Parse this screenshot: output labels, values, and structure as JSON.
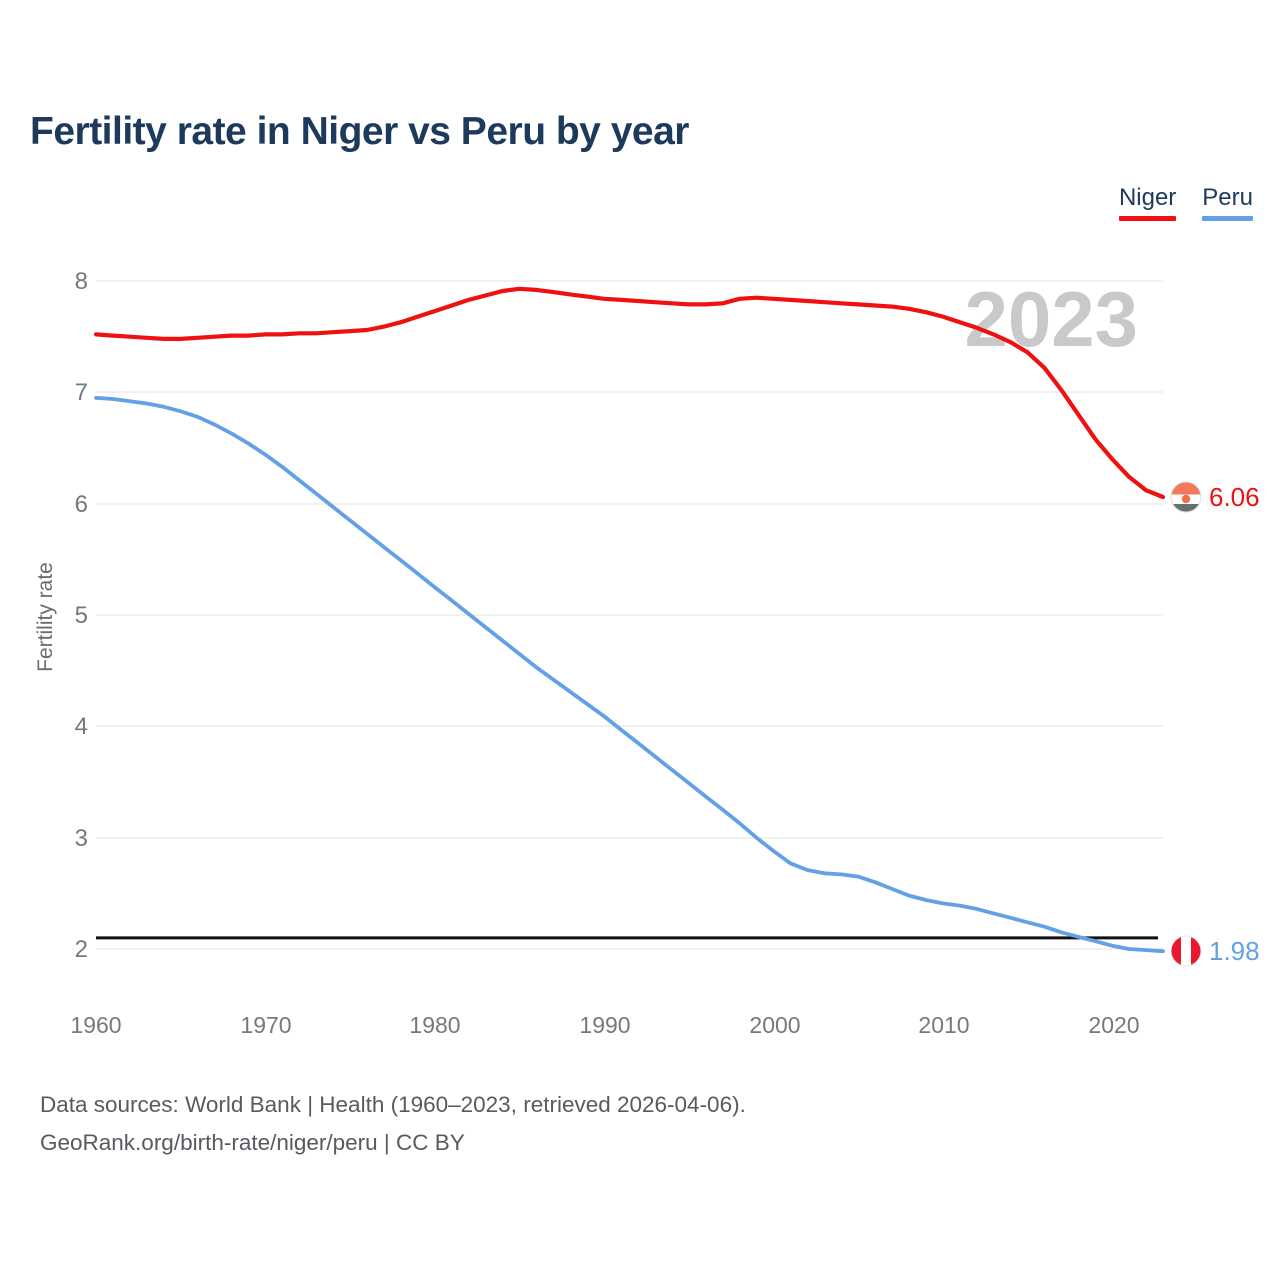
{
  "page": {
    "title": "Fertility rate in Niger vs Peru by year",
    "watermark": "2023",
    "footer_line1": "Data sources: World Bank | Health (1960–2023, retrieved 2026-04-06).",
    "footer_line2": "GeoRank.org/birth-rate/niger/peru | CC BY"
  },
  "legend": {
    "niger_label": "Niger",
    "peru_label": "Peru"
  },
  "end_labels": {
    "niger_value": "6.06",
    "peru_value": "1.98"
  },
  "colors": {
    "niger_line": "#ee1111",
    "peru_line": "#64a0e6",
    "title_text": "#1d3a5c",
    "watermark_text": "#c9c9c9",
    "reference_line": "#111111",
    "gridline": "#ececec",
    "niger_flag_orange": "#f2795b",
    "niger_flag_bottom": "#68706f",
    "peru_flag_red": "#e8192c"
  },
  "axes": {
    "y_title": "Fertility rate",
    "y_ticks": [
      "8",
      "7",
      "6",
      "5",
      "4",
      "3",
      "2"
    ],
    "x_ticks": [
      "1960",
      "1970",
      "1980",
      "1990",
      "2000",
      "2010",
      "2020"
    ]
  },
  "chart_data": {
    "type": "line",
    "title": "Fertility rate in Niger vs Peru by year",
    "xlabel": "",
    "ylabel": "Fertility rate",
    "x_range": [
      1960,
      2023
    ],
    "ylim": [
      2,
      8
    ],
    "grid": "horizontal",
    "legend_position": "top-right",
    "reference_line_y": 2.1,
    "x": [
      1960,
      1961,
      1962,
      1963,
      1964,
      1965,
      1966,
      1967,
      1968,
      1969,
      1970,
      1971,
      1972,
      1973,
      1974,
      1975,
      1976,
      1977,
      1978,
      1979,
      1980,
      1981,
      1982,
      1983,
      1984,
      1985,
      1986,
      1987,
      1988,
      1989,
      1990,
      1991,
      1992,
      1993,
      1994,
      1995,
      1996,
      1997,
      1998,
      1999,
      2000,
      2001,
      2002,
      2003,
      2004,
      2005,
      2006,
      2007,
      2008,
      2009,
      2010,
      2011,
      2012,
      2013,
      2014,
      2015,
      2016,
      2017,
      2018,
      2019,
      2020,
      2021,
      2022,
      2023
    ],
    "series": [
      {
        "name": "Niger",
        "color": "#ee1111",
        "end_label": "6.06",
        "final_value": 6.06,
        "values": [
          7.52,
          7.51,
          7.5,
          7.49,
          7.48,
          7.48,
          7.49,
          7.5,
          7.51,
          7.51,
          7.52,
          7.52,
          7.53,
          7.53,
          7.54,
          7.55,
          7.56,
          7.59,
          7.63,
          7.68,
          7.73,
          7.78,
          7.83,
          7.87,
          7.91,
          7.93,
          7.92,
          7.9,
          7.88,
          7.86,
          7.84,
          7.83,
          7.82,
          7.81,
          7.8,
          7.79,
          7.79,
          7.8,
          7.84,
          7.85,
          7.84,
          7.83,
          7.82,
          7.81,
          7.8,
          7.79,
          7.78,
          7.77,
          7.75,
          7.72,
          7.68,
          7.63,
          7.58,
          7.52,
          7.45,
          7.36,
          7.22,
          7.02,
          6.8,
          6.58,
          6.4,
          6.24,
          6.12,
          6.06
        ]
      },
      {
        "name": "Peru",
        "color": "#64a0e6",
        "end_label": "1.98",
        "final_value": 1.98,
        "values": [
          6.95,
          6.94,
          6.92,
          6.9,
          6.87,
          6.83,
          6.78,
          6.71,
          6.63,
          6.54,
          6.44,
          6.33,
          6.21,
          6.09,
          5.97,
          5.85,
          5.73,
          5.61,
          5.49,
          5.37,
          5.25,
          5.13,
          5.01,
          4.89,
          4.77,
          4.65,
          4.53,
          4.42,
          4.31,
          4.2,
          4.09,
          3.97,
          3.85,
          3.73,
          3.61,
          3.49,
          3.37,
          3.25,
          3.13,
          3.0,
          2.88,
          2.77,
          2.71,
          2.68,
          2.67,
          2.65,
          2.6,
          2.54,
          2.48,
          2.44,
          2.41,
          2.39,
          2.36,
          2.32,
          2.28,
          2.24,
          2.2,
          2.15,
          2.11,
          2.07,
          2.03,
          2.0,
          1.99,
          1.98
        ]
      }
    ]
  }
}
